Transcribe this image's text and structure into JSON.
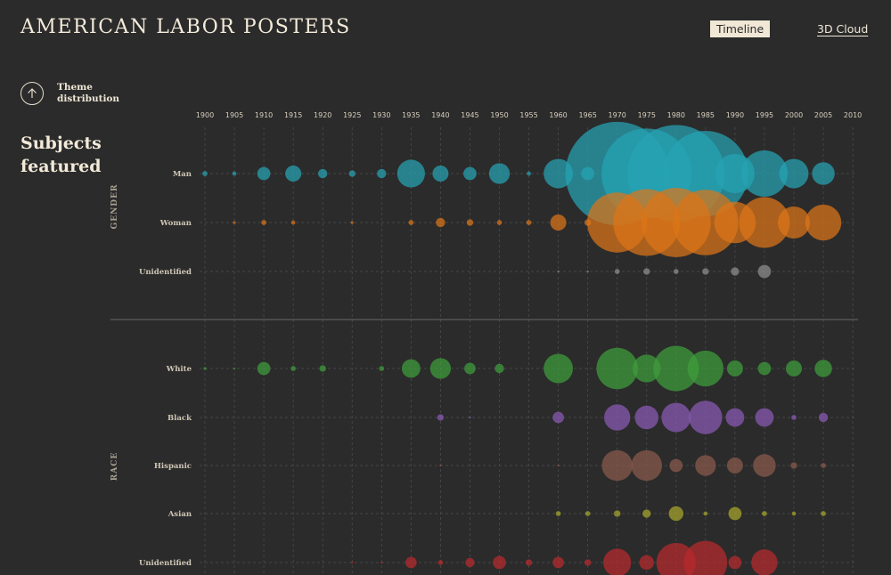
{
  "header": {
    "title": "AMERICAN LABOR POSTERS",
    "nav": {
      "timeline": "Timeline",
      "cloud": "3D Cloud"
    }
  },
  "sidebar": {
    "theme_label": "Theme distribution",
    "theme_icon": "arrow-up-icon",
    "section_title": "Subjects featured"
  },
  "chart_data": {
    "type": "scatter",
    "x": [
      1900,
      1905,
      1910,
      1915,
      1920,
      1925,
      1930,
      1935,
      1940,
      1945,
      1950,
      1955,
      1960,
      1965,
      1970,
      1975,
      1980,
      1985,
      1990,
      1995,
      2000,
      2005,
      2010
    ],
    "groups": [
      {
        "name": "GENDER",
        "series": [
          {
            "name": "Man",
            "color": "#26a4b4",
            "values": [
              0.3,
              0.2,
              2,
              3,
              1,
              0.5,
              1,
              9,
              3,
              2,
              5,
              0.2,
              10,
              2,
              125,
              95,
              110,
              85,
              18,
              25,
              10,
              6,
              0
            ]
          },
          {
            "name": "Woman",
            "color": "#dc7418",
            "values": [
              0,
              0.1,
              0.3,
              0.2,
              0,
              0.1,
              0,
              0.3,
              1,
              0.5,
              0.3,
              0.3,
              3,
              0.5,
              42,
              52,
              56,
              50,
              20,
              30,
              12,
              15,
              0
            ]
          },
          {
            "name": "Unidentified",
            "color": "#8f8f8f",
            "values": [
              0,
              0,
              0,
              0,
              0,
              0,
              0,
              0,
              0,
              0,
              0,
              0,
              0.05,
              0.05,
              0.3,
              0.5,
              0.3,
              0.5,
              0.8,
              2,
              0,
              0,
              0
            ]
          }
        ]
      },
      {
        "name": "RACE",
        "series": [
          {
            "name": "White",
            "color": "#3f9e3c",
            "values": [
              0.1,
              0.05,
              2,
              0.3,
              0.5,
              0,
              0.3,
              4,
              5,
              1.5,
              1,
              0,
              10,
              0,
              20,
              9,
              24,
              15,
              3,
              2,
              3,
              3.5,
              0
            ]
          },
          {
            "name": "Black",
            "color": "#8a5ab6",
            "values": [
              0,
              0,
              0,
              0,
              0,
              0,
              0,
              0,
              0.5,
              0.05,
              0,
              0,
              1.5,
              0,
              8,
              6.5,
              10,
              13,
              4,
              4,
              0.3,
              1,
              0
            ]
          },
          {
            "name": "Hispanic",
            "color": "#8a5a4c",
            "values": [
              0,
              0,
              0,
              0,
              0,
              0,
              0,
              0,
              0.05,
              0,
              0,
              0,
              0.05,
              0,
              11,
              11,
              2,
              5,
              3,
              6,
              0.5,
              0.3,
              0
            ]
          },
          {
            "name": "Asian",
            "color": "#a8a62c",
            "values": [
              0,
              0,
              0,
              0,
              0,
              0,
              0,
              0,
              0,
              0,
              0,
              0,
              0.3,
              0.3,
              0.5,
              0.8,
              2.5,
              0.2,
              2,
              0.3,
              0.2,
              0.3,
              0
            ]
          },
          {
            "name": "Unidentified",
            "color": "#b92a2c",
            "values": [
              0,
              0,
              0,
              0,
              0,
              0.05,
              0.05,
              1.5,
              0.3,
              1,
              2,
              0.5,
              1.5,
              0.5,
              9,
              2.5,
              18,
              22,
              2,
              8,
              0,
              0,
              0
            ]
          }
        ]
      }
    ],
    "legend": "none",
    "grid": true
  }
}
